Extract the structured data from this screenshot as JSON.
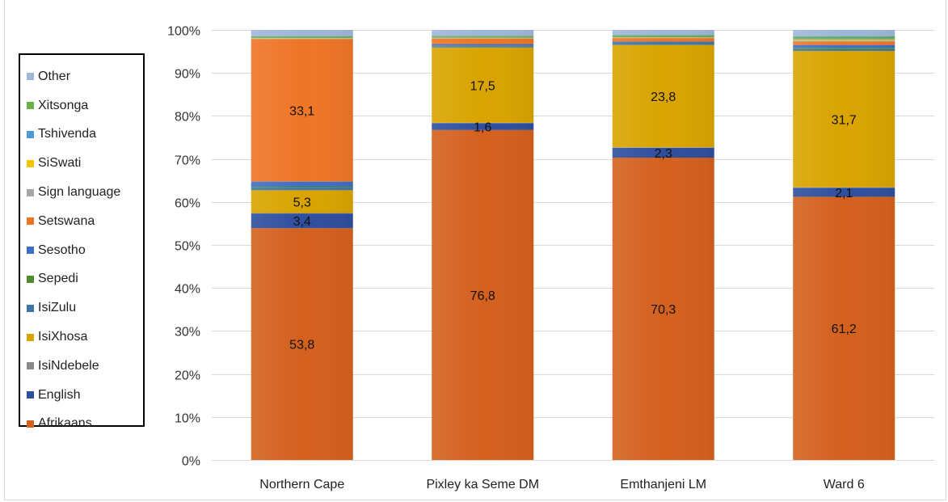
{
  "chart_data": {
    "type": "bar",
    "stacked": true,
    "normalized_percent": true,
    "categories": [
      "Northern Cape",
      "Pixley ka Seme DM",
      "Emthanjeni LM",
      "Ward 6"
    ],
    "y_tick_labels": [
      "0%",
      "10%",
      "20%",
      "30%",
      "40%",
      "50%",
      "60%",
      "70%",
      "80%",
      "90%",
      "100%"
    ],
    "ylim": [
      0,
      100
    ],
    "grid": true,
    "legend_position": "left",
    "series": [
      {
        "name": "Afrikaans",
        "color": "#d4601e",
        "values": [
          53.8,
          76.8,
          70.3,
          61.2
        ],
        "labels": [
          "53,8",
          "76,8",
          "70,3",
          "61,2"
        ]
      },
      {
        "name": "English",
        "color": "#2e4f9e",
        "values": [
          3.4,
          1.6,
          2.3,
          2.1
        ],
        "labels": [
          "3,4",
          "1,6",
          "2,3",
          "2,1"
        ]
      },
      {
        "name": "IsiNdebele",
        "color": "#8a8a8a",
        "values": [
          0.1,
          0.1,
          0.1,
          0.1
        ],
        "labels": [
          "",
          "",
          "",
          ""
        ]
      },
      {
        "name": "IsiXhosa",
        "color": "#d9a400",
        "values": [
          5.3,
          17.5,
          23.8,
          31.7
        ],
        "labels": [
          "5,3",
          "17,5",
          "23,8",
          "31,7"
        ]
      },
      {
        "name": "IsiZulu",
        "color": "#3e75a8",
        "values": [
          0.6,
          0.3,
          0.3,
          0.4
        ],
        "labels": [
          "",
          "",
          "",
          ""
        ]
      },
      {
        "name": "Sepedi",
        "color": "#4f8a2e",
        "values": [
          0.2,
          0.1,
          0.1,
          0.3
        ],
        "labels": [
          "",
          "",
          "",
          ""
        ]
      },
      {
        "name": "Sesotho",
        "color": "#3d6fc9",
        "values": [
          1.2,
          0.4,
          0.4,
          0.7
        ],
        "labels": [
          "",
          "",
          "",
          ""
        ]
      },
      {
        "name": "Setswana",
        "color": "#ee7526",
        "values": [
          33.1,
          1.3,
          0.8,
          0.8
        ],
        "labels": [
          "33,1",
          "",
          "",
          ""
        ]
      },
      {
        "name": "Sign language",
        "color": "#a5a5a5",
        "values": [
          0.1,
          0.1,
          0.1,
          0.2
        ],
        "labels": [
          "",
          "",
          "",
          ""
        ]
      },
      {
        "name": "SiSwati",
        "color": "#f5c400",
        "values": [
          0.1,
          0.1,
          0.1,
          0.3
        ],
        "labels": [
          "",
          "",
          "",
          ""
        ]
      },
      {
        "name": "Tshivenda",
        "color": "#4c9ad8",
        "values": [
          0.1,
          0.1,
          0.1,
          0.3
        ],
        "labels": [
          "",
          "",
          "",
          ""
        ]
      },
      {
        "name": "Xitsonga",
        "color": "#66b344",
        "values": [
          0.3,
          0.3,
          0.4,
          0.4
        ],
        "labels": [
          "",
          "",
          "",
          ""
        ]
      },
      {
        "name": "Other",
        "color": "#9fb6dc",
        "values": [
          1.5,
          1.4,
          1.2,
          1.5
        ],
        "labels": [
          "",
          "",
          "",
          ""
        ]
      }
    ]
  }
}
